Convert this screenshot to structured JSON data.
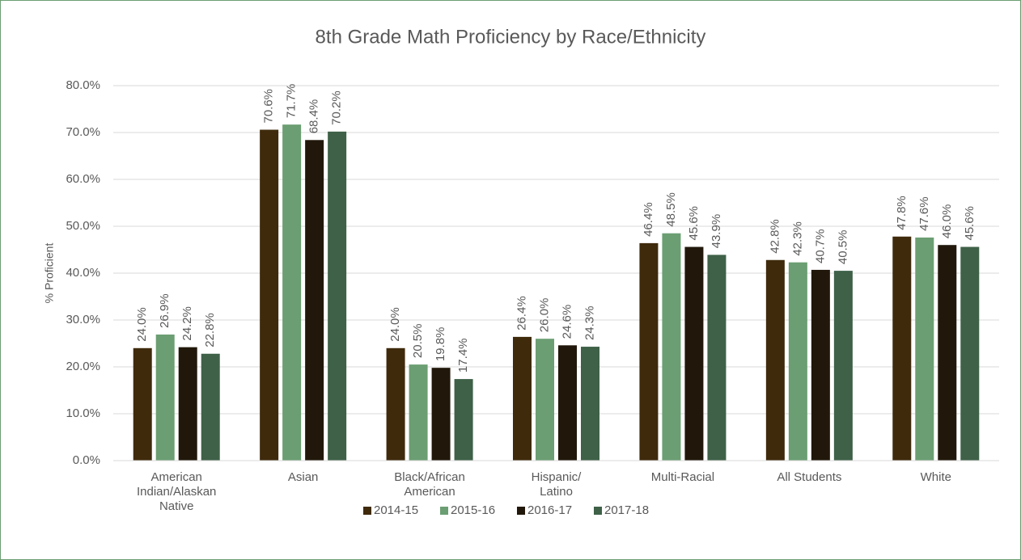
{
  "chart_data": {
    "type": "bar",
    "title": "8th Grade Math Proficiency by Race/Ethnicity",
    "y_label": "% Proficient",
    "categories": [
      "American Indian/Alaskan Native",
      "Asian",
      "Black/African American",
      "Hispanic/Latino",
      "Multi-Racial",
      "All Students",
      "White"
    ],
    "series": [
      {
        "name": "2014-15",
        "color": "#3f2a0c",
        "values": [
          24.0,
          70.6,
          24.0,
          26.4,
          46.4,
          42.8,
          47.8
        ],
        "value_labels": [
          "24.0%",
          "70.6%",
          "24.0%",
          "26.4%",
          "46.4%",
          "42.8%",
          "47.8%"
        ]
      },
      {
        "name": "2015-16",
        "color": "#6b9e72",
        "values": [
          26.9,
          71.7,
          20.5,
          26.0,
          48.5,
          42.3,
          47.6
        ],
        "value_labels": [
          "26.9%",
          "71.7%",
          "20.5%",
          "26.0%",
          "48.5%",
          "42.3%",
          "47.6%"
        ]
      },
      {
        "name": "2016-17",
        "color": "#21180b",
        "values": [
          24.2,
          68.4,
          19.8,
          24.6,
          45.6,
          40.7,
          46.0
        ],
        "value_labels": [
          "24.2%",
          "68.4%",
          "19.8%",
          "24.6%",
          "45.6%",
          "40.7%",
          "46.0%"
        ]
      },
      {
        "name": "2017-18",
        "color": "#3e6148",
        "values": [
          22.8,
          70.2,
          17.4,
          24.3,
          43.9,
          40.5,
          45.6
        ],
        "value_labels": [
          "22.8%",
          "70.2%",
          "17.4%",
          "24.3%",
          "43.9%",
          "40.5%",
          "45.6%"
        ]
      }
    ],
    "ylim": [
      0,
      80
    ],
    "yticks": [
      {
        "value": 0,
        "label": "0.0%"
      },
      {
        "value": 10,
        "label": "10.0%"
      },
      {
        "value": 20,
        "label": "20.0%"
      },
      {
        "value": 30,
        "label": "30.0%"
      },
      {
        "value": 40,
        "label": "40.0%"
      },
      {
        "value": 50,
        "label": "50.0%"
      },
      {
        "value": 60,
        "label": "60.0%"
      },
      {
        "value": 70,
        "label": "70.0%"
      },
      {
        "value": 80,
        "label": "80.0%"
      }
    ],
    "grid": true,
    "legend": "bottom"
  }
}
